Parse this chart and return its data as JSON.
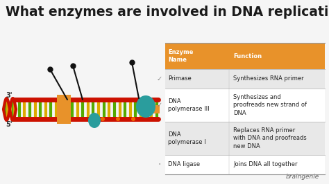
{
  "title": "What enzymes are involved in DNA replication?",
  "title_fontsize": 13.5,
  "title_color": "#1a1a1a",
  "bg_color": "#f5f5f5",
  "header_bg": "#e8922a",
  "header_text_color": "#ffffff",
  "row_bgs": [
    "#e8e8e8",
    "#ffffff",
    "#e8e8e8",
    "#ffffff"
  ],
  "col1_header": "Enzyme\nName",
  "col2_header": "Function",
  "rows": [
    [
      "Primase",
      "Synthesizes RNA primer"
    ],
    [
      "DNA\npolymerase III",
      "Synthesizes and\nproofreads new strand of\nDNA"
    ],
    [
      "DNA\npolymerase I",
      "Replaces RNA primer\nwith DNA and proofreads\nnew DNA"
    ],
    [
      "DNA ligase",
      "Joins DNA all together"
    ]
  ],
  "braingenie_text": "braingenie",
  "braingenie_color": "#666666",
  "strand_color_top": "#cc1100",
  "strand_color_bot": "#cc1100",
  "rung_colors": [
    "#ddaa00",
    "#55aa00"
  ],
  "orange_block": "#e8922a",
  "teal_color": "#2a9d9d",
  "pin_color": "#111111",
  "label_color": "#333333"
}
